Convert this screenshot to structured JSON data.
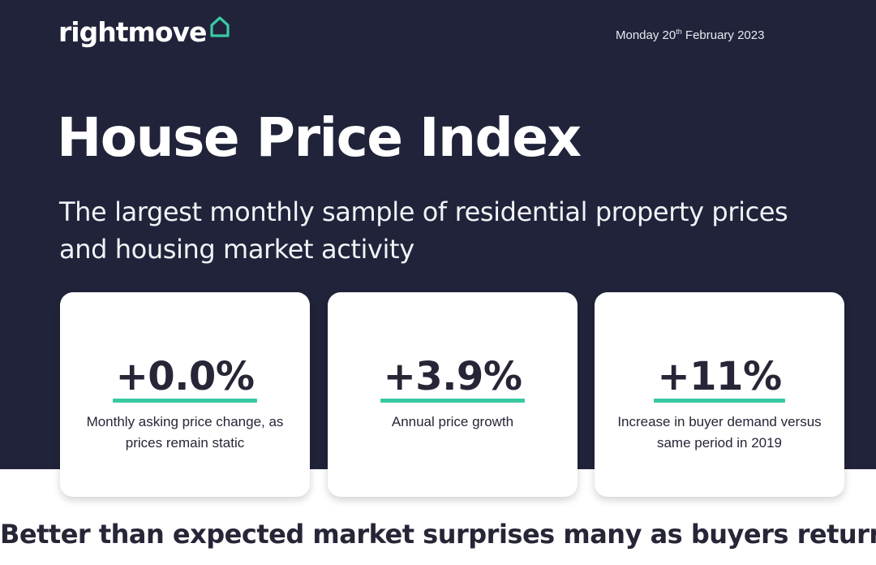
{
  "brand": {
    "logo_text": "rightmove",
    "logo_icon": "house-outline-icon",
    "accent_color": "#3ac9a2",
    "navy_color": "#20233a"
  },
  "date": {
    "prefix": "Monday 20",
    "suffix": "th",
    "rest": " February 2023"
  },
  "title": "House Price Index",
  "subtitle": "The largest monthly sample of residential property prices and housing market activity",
  "stats": [
    {
      "value": "+0.0%",
      "description": "Monthly asking price change, as prices remain static"
    },
    {
      "value": "+3.9%",
      "description": "Annual price growth"
    },
    {
      "value": "+11%",
      "description": "Increase in buyer demand versus same period in 2019"
    }
  ],
  "headline": "Better than expected market surprises many as buyers return"
}
